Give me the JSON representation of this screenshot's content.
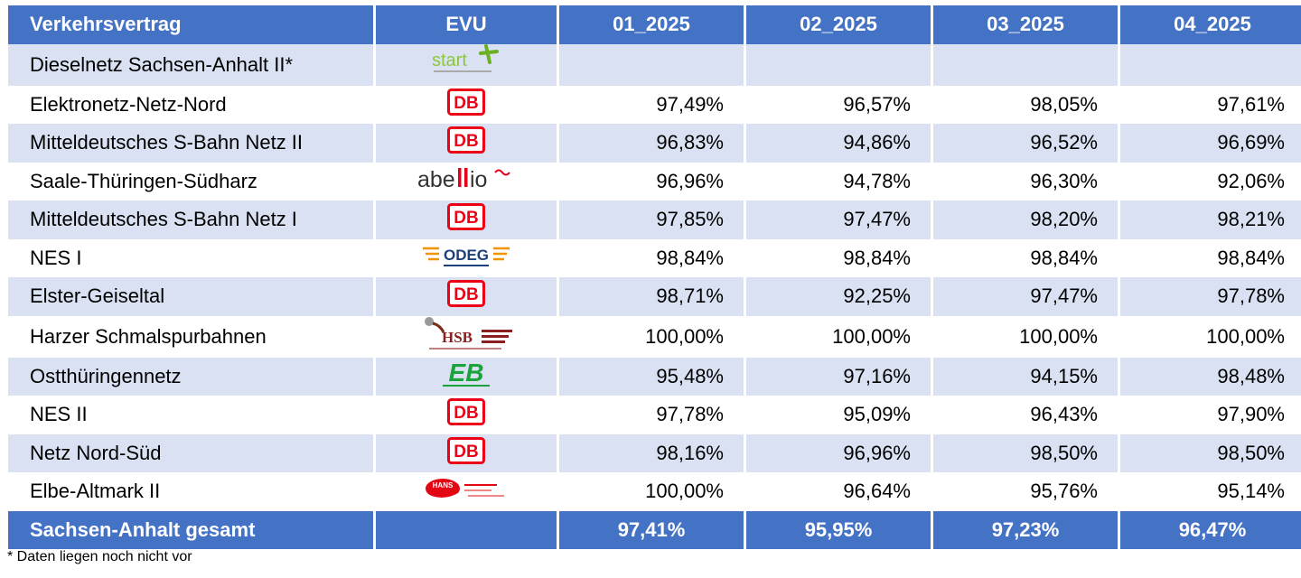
{
  "header": {
    "col_contract": "Verkehrsvertrag",
    "col_evu": "EVU",
    "months": [
      "01_2025",
      "02_2025",
      "03_2025",
      "04_2025"
    ]
  },
  "rows": [
    {
      "name": "Dieselnetz Sachsen-Anhalt II*",
      "evu": "start",
      "logo": "start-logo",
      "values": [
        "",
        "",
        "",
        ""
      ]
    },
    {
      "name": "Elektronetz-Netz-Nord",
      "evu": "DB",
      "logo": "db-logo",
      "values": [
        "97,49%",
        "96,57%",
        "98,05%",
        "97,61%"
      ]
    },
    {
      "name": "Mitteldeutsches S-Bahn Netz II",
      "evu": "DB",
      "logo": "db-logo",
      "values": [
        "96,83%",
        "94,86%",
        "96,52%",
        "96,69%"
      ]
    },
    {
      "name": "Saale-Thüringen-Südharz",
      "evu": "abellio",
      "logo": "abellio-logo",
      "values": [
        "96,96%",
        "94,78%",
        "96,30%",
        "92,06%"
      ]
    },
    {
      "name": "Mitteldeutsches S-Bahn Netz I",
      "evu": "DB",
      "logo": "db-logo",
      "values": [
        "97,85%",
        "97,47%",
        "98,20%",
        "98,21%"
      ]
    },
    {
      "name": "NES I",
      "evu": "ODEG",
      "logo": "odeg-logo",
      "values": [
        "98,84%",
        "98,84%",
        "98,84%",
        "98,84%"
      ]
    },
    {
      "name": "Elster-Geiseltal",
      "evu": "DB",
      "logo": "db-logo",
      "values": [
        "98,71%",
        "92,25%",
        "97,47%",
        "97,78%"
      ]
    },
    {
      "name": "Harzer Schmalspurbahnen",
      "evu": "HSB",
      "logo": "hsb-logo",
      "values": [
        "100,00%",
        "100,00%",
        "100,00%",
        "100,00%"
      ]
    },
    {
      "name": "Ostthüringennetz",
      "evu": "EB",
      "logo": "eb-logo",
      "values": [
        "95,48%",
        "97,16%",
        "94,15%",
        "98,48%"
      ]
    },
    {
      "name": "NES II",
      "evu": "DB",
      "logo": "db-logo",
      "values": [
        "97,78%",
        "95,09%",
        "96,43%",
        "97,90%"
      ]
    },
    {
      "name": "Netz Nord-Süd",
      "evu": "DB",
      "logo": "db-logo",
      "values": [
        "98,16%",
        "96,96%",
        "98,50%",
        "98,50%"
      ]
    },
    {
      "name": "Elbe-Altmark II",
      "evu": "HANS",
      "logo": "hans-logo",
      "values": [
        "100,00%",
        "96,64%",
        "95,76%",
        "95,14%"
      ]
    }
  ],
  "footer": {
    "label": "Sachsen-Anhalt gesamt",
    "evu": "",
    "totals": [
      "97,41%",
      "95,95%",
      "97,23%",
      "96,47%"
    ]
  },
  "footnote": "* Daten liegen noch nicht vor",
  "colors": {
    "header_blue": "#4472c4",
    "stripe": "#d9e1f2",
    "db_red": "#ec0016"
  }
}
